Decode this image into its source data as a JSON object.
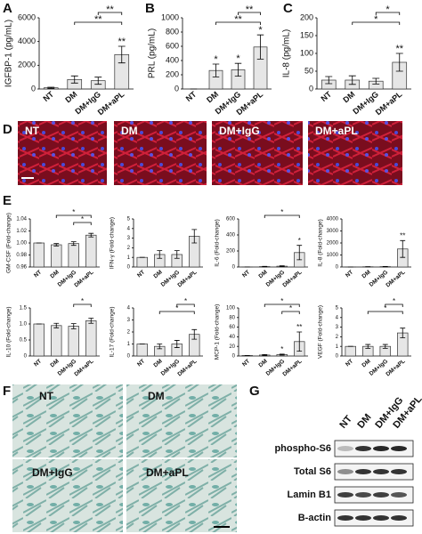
{
  "panel_letters": [
    "A",
    "B",
    "C",
    "D",
    "E",
    "F",
    "G"
  ],
  "chart_data": [
    {
      "type": "bar",
      "ylabel": "IGFBP-1 (pg/mL)",
      "categories": [
        "NT",
        "DM",
        "DM+IgG",
        "DM+aPL"
      ],
      "values": [
        100,
        800,
        700,
        2900
      ],
      "errors": [
        50,
        300,
        300,
        700
      ],
      "ylim": [
        0,
        6000
      ],
      "yticks": [
        0,
        2000,
        4000,
        6000
      ],
      "annotations": [
        {
          "category": "DM+aPL",
          "label": "**"
        }
      ],
      "brackets": [
        {
          "between": [
            "DM+IgG",
            "DM+aPL"
          ],
          "label": "**"
        },
        {
          "between": [
            "DM",
            "DM+aPL"
          ],
          "label": "**"
        }
      ]
    },
    {
      "type": "bar",
      "ylabel": "PRL (pg/mL)",
      "categories": [
        "NT",
        "DM",
        "DM+IgG",
        "DM+aPL"
      ],
      "values": [
        0,
        260,
        270,
        590
      ],
      "errors": [
        0,
        90,
        90,
        170
      ],
      "ylim": [
        0,
        1000
      ],
      "yticks": [
        0,
        200,
        400,
        600,
        800,
        1000
      ],
      "annotations": [
        {
          "category": "DM",
          "label": "*"
        },
        {
          "category": "DM+IgG",
          "label": "*"
        },
        {
          "category": "DM+aPL",
          "label": "*"
        }
      ],
      "brackets": [
        {
          "between": [
            "DM+IgG",
            "DM+aPL"
          ],
          "label": "**"
        },
        {
          "between": [
            "DM",
            "DM+aPL"
          ],
          "label": "**"
        }
      ]
    },
    {
      "type": "bar",
      "ylabel": "IL-8 (pg/mL)",
      "categories": [
        "NT",
        "DM",
        "DM+IgG",
        "DM+aPL"
      ],
      "values": [
        25,
        25,
        22,
        75
      ],
      "errors": [
        10,
        12,
        8,
        25
      ],
      "ylim": [
        0,
        200
      ],
      "yticks": [
        0,
        50,
        100,
        150,
        200
      ],
      "annotations": [
        {
          "category": "DM+aPL",
          "label": "**"
        }
      ],
      "brackets": [
        {
          "between": [
            "DM+IgG",
            "DM+aPL"
          ],
          "label": "*"
        },
        {
          "between": [
            "DM",
            "DM+aPL"
          ],
          "label": "*"
        }
      ]
    },
    {
      "type": "bar",
      "ylabel": "GM-CSF (Fold-change)",
      "categories": [
        "NT",
        "DM",
        "DM+IgG",
        "DM+aPL"
      ],
      "values": [
        1.0,
        0.997,
        0.999,
        1.013
      ],
      "errors": [
        0,
        0.002,
        0.003,
        0.003
      ],
      "ylim": [
        0.96,
        1.04
      ],
      "yticks": [
        0.96,
        0.98,
        {
          "value": 1,
          "label": "1.00"
        },
        1.02,
        1.04
      ],
      "annotations": [],
      "brackets": [
        {
          "between": [
            "DM",
            "DM+aPL"
          ],
          "label": "*"
        },
        {
          "between": [
            "DM+IgG",
            "DM+aPL"
          ],
          "label": "*"
        }
      ]
    },
    {
      "type": "bar",
      "ylabel": "IFN-γ (Fold-change)",
      "categories": [
        "NT",
        "DM",
        "DM+IgG",
        "DM+aPL"
      ],
      "values": [
        1,
        1.3,
        1.3,
        3.2
      ],
      "errors": [
        0,
        0.4,
        0.4,
        0.7
      ],
      "ylim": [
        0,
        5
      ],
      "yticks": [
        0,
        1,
        2,
        3,
        4,
        5
      ],
      "annotations": [],
      "brackets": []
    },
    {
      "type": "bar",
      "ylabel": "IL-6 (Fold-change)",
      "categories": [
        "NT",
        "DM",
        "DM+IgG",
        "DM+aPL"
      ],
      "values": [
        1,
        5,
        10,
        180
      ],
      "errors": [
        0,
        3,
        5,
        90
      ],
      "ylim": [
        0,
        600
      ],
      "yticks": [
        0,
        200,
        400,
        600
      ],
      "annotations": [
        {
          "category": "DM+aPL",
          "label": "*"
        }
      ],
      "brackets": [
        {
          "between": [
            "DM",
            "DM+aPL"
          ],
          "label": "*"
        }
      ]
    },
    {
      "type": "bar",
      "ylabel": "IL-8 (Fold-change)",
      "categories": [
        "NT",
        "DM",
        "DM+IgG",
        "DM+aPL"
      ],
      "values": [
        1,
        20,
        30,
        1500
      ],
      "errors": [
        0,
        10,
        15,
        700
      ],
      "ylim": [
        0,
        4000
      ],
      "yticks": [
        0,
        1000,
        2000,
        3000,
        4000
      ],
      "annotations": [
        {
          "category": "DM+aPL",
          "label": "**"
        }
      ],
      "brackets": []
    },
    {
      "type": "bar",
      "ylabel": "IL-10 (Fold-change)",
      "categories": [
        "NT",
        "DM",
        "DM+IgG",
        "DM+aPL"
      ],
      "values": [
        1,
        0.95,
        0.93,
        1.1
      ],
      "errors": [
        0,
        0.07,
        0.08,
        0.08
      ],
      "ylim": [
        0,
        1.5
      ],
      "yticks": [
        0,
        0.5,
        {
          "value": 1,
          "label": "1.0"
        },
        1.5
      ],
      "annotations": [],
      "brackets": [
        {
          "between": [
            "DM+IgG",
            "DM+aPL"
          ],
          "label": "*"
        }
      ]
    },
    {
      "type": "bar",
      "ylabel": "IL-17 (Fold-change)",
      "categories": [
        "NT",
        "DM",
        "DM+IgG",
        "DM+aPL"
      ],
      "values": [
        1,
        0.8,
        1,
        1.8
      ],
      "errors": [
        0,
        0.2,
        0.3,
        0.4
      ],
      "ylim": [
        0,
        4
      ],
      "yticks": [
        0,
        1,
        2,
        3,
        4
      ],
      "annotations": [],
      "brackets": [
        {
          "between": [
            "DM+IgG",
            "DM+aPL"
          ],
          "label": "*"
        },
        {
          "between": [
            "DM",
            "DM+aPL"
          ],
          "label": "*"
        }
      ]
    },
    {
      "type": "bar",
      "ylabel": "MCP-1 (Fold-change)",
      "categories": [
        "NT",
        "DM",
        "DM+IgG",
        "DM+aPL"
      ],
      "values": [
        1,
        2,
        3,
        30
      ],
      "errors": [
        0,
        1,
        1,
        20
      ],
      "ylim": [
        0,
        100
      ],
      "yticks": [
        0,
        20,
        40,
        60,
        80,
        100
      ],
      "annotations": [
        {
          "category": "DM+IgG",
          "label": "*"
        },
        {
          "category": "DM+aPL",
          "label": "**"
        }
      ],
      "brackets": [
        {
          "between": [
            "DM",
            "DM+aPL"
          ],
          "label": "*"
        },
        {
          "between": [
            "DM+IgG",
            "DM+aPL"
          ],
          "label": "*"
        }
      ]
    },
    {
      "type": "bar",
      "ylabel": "VEGF (Fold-change)",
      "categories": [
        "NT",
        "DM",
        "DM+IgG",
        "DM+aPL"
      ],
      "values": [
        1,
        1,
        1,
        2.4
      ],
      "errors": [
        0,
        0.2,
        0.2,
        0.5
      ],
      "ylim": [
        0,
        5
      ],
      "yticks": [
        0,
        1,
        2,
        3,
        4,
        5
      ],
      "annotations": [],
      "brackets": [
        {
          "between": [
            "DM+IgG",
            "DM+aPL"
          ],
          "label": "*"
        },
        {
          "between": [
            "DM",
            "DM+aPL"
          ],
          "label": "*"
        }
      ]
    }
  ],
  "images": {
    "D": [
      "NT",
      "DM",
      "DM+IgG",
      "DM+aPL"
    ],
    "F": [
      "NT",
      "DM",
      "DM+IgG",
      "DM+aPL"
    ]
  },
  "western_blot": {
    "lanes": [
      "NT",
      "DM",
      "DM+IgG",
      "DM+aPL"
    ],
    "rows": [
      "phospho-S6",
      "Total S6",
      "Lamin B1",
      "B-actin"
    ]
  }
}
